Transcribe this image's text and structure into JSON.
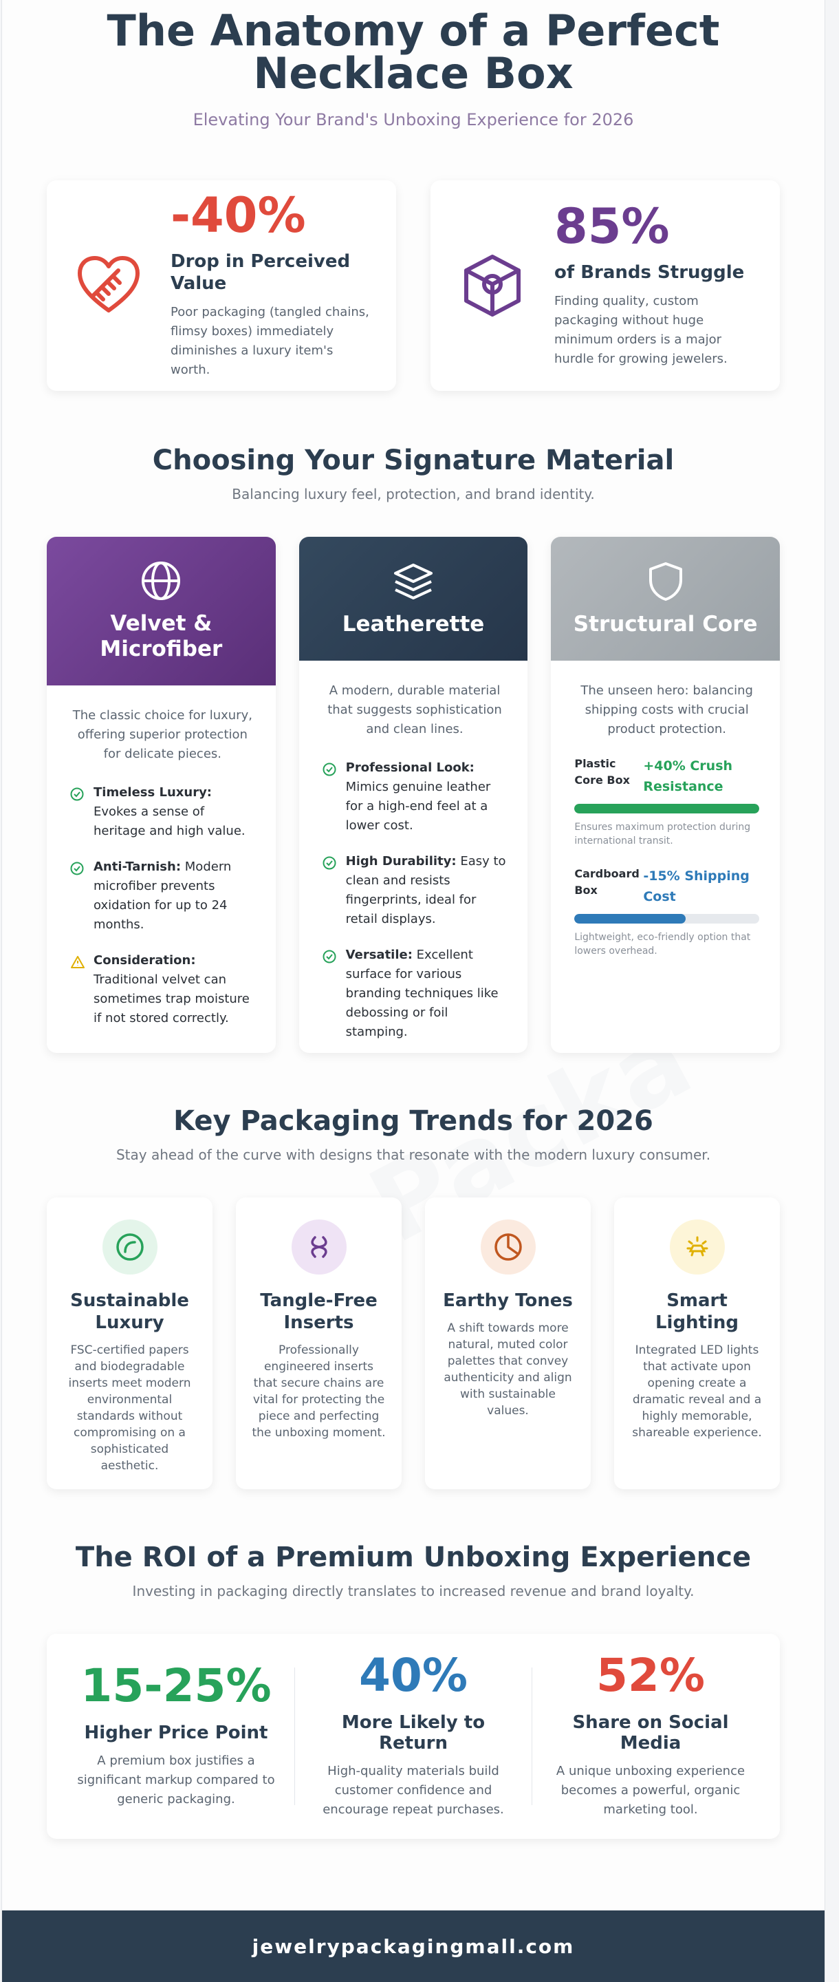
{
  "header": {
    "title_line1": "The Anatomy of a Perfect",
    "title_line2": "Necklace Box",
    "subtitle": "Elevating Your Brand's Unboxing Experience for 2026"
  },
  "colors": {
    "navy": "#2c3e50",
    "red": "#e04a3c",
    "purple": "#6b3d8f",
    "green": "#27a25a",
    "blue": "#2e7ab8",
    "gold": "#e0b000"
  },
  "stats": [
    {
      "icon": "broken-heart-icon",
      "value": "-40%",
      "heading": "Drop in Perceived Value",
      "desc": "Poor packaging (tangled chains, flimsy boxes) immediately diminishes a luxury item's worth."
    },
    {
      "icon": "box-icon",
      "value": "85%",
      "heading": "of Brands Struggle",
      "desc": "Finding quality, custom packaging without huge minimum orders is a major hurdle for growing jewelers."
    }
  ],
  "materials_section": {
    "title": "Choosing Your Signature Material",
    "subtitle": "Balancing luxury feel, protection, and brand identity.",
    "cards": [
      {
        "icon": "globe-icon",
        "title_line1": "Velvet &",
        "title_line2": "Microfiber",
        "intro": "The classic choice for luxury, offering superior protection for delicate pieces.",
        "points": [
          {
            "icon": "check-icon",
            "label": "Timeless Luxury:",
            "text": "Evokes a sense of heritage and high value."
          },
          {
            "icon": "check-icon",
            "label": "Anti-Tarnish:",
            "text": "Modern microfiber prevents oxidation for up to 24 months."
          },
          {
            "icon": "warning-icon",
            "label": "Consideration:",
            "text": "Traditional velvet can sometimes trap moisture if not stored correctly."
          }
        ]
      },
      {
        "icon": "layers-icon",
        "title": "Leatherette",
        "intro": "A modern, durable material that suggests sophistication and clean lines.",
        "points": [
          {
            "icon": "check-icon",
            "label": "Professional Look:",
            "text": "Mimics genuine leather for a high-end feel at a lower cost."
          },
          {
            "icon": "check-icon",
            "label": "High Durability:",
            "text": "Easy to clean and resists fingerprints, ideal for retail displays."
          },
          {
            "icon": "check-icon",
            "label": "Versatile:",
            "text": "Excellent surface for various branding techniques like debossing or foil stamping."
          }
        ]
      },
      {
        "icon": "shield-icon",
        "title": "Structural Core",
        "intro": "The unseen hero: balancing shipping costs with crucial product protection.",
        "bars": [
          {
            "label_line1": "Plastic",
            "label_line2": "Core Box",
            "value_line1": "+40% Crush",
            "value_line2": "Resistance",
            "level": 1.0,
            "color": "#27a25a",
            "note": "Ensures maximum protection during international transit."
          },
          {
            "label_line1": "Cardboard",
            "label_line2": "Box",
            "value_line1": "-15% Shipping",
            "value_line2": "Cost",
            "level": 0.6,
            "color": "#2e7ab8",
            "note": "Lightweight, eco-friendly option that lowers overhead."
          }
        ]
      }
    ]
  },
  "trends_section": {
    "title": "Key Packaging Trends for 2026",
    "subtitle": "Stay ahead of the curve with designs that resonate with the modern luxury consumer.",
    "cards": [
      {
        "icon": "leaf-icon",
        "title_line1": "Sustainable",
        "title_line2": "Luxury",
        "desc": "FSC-certified papers and biodegradable inserts meet modern environmental standards without compromising on a sophisticated aesthetic."
      },
      {
        "icon": "knot-icon",
        "title_line1": "Tangle-Free",
        "title_line2": "Inserts",
        "desc": "Professionally engineered inserts that secure chains are vital for protecting the piece and perfecting the unboxing moment."
      },
      {
        "icon": "palette-icon",
        "title_line1": "Earthy Tones",
        "title_line2": "",
        "desc": "A shift towards more natural, muted color palettes that convey authenticity and align with sustainable values."
      },
      {
        "icon": "light-icon",
        "title_line1": "Smart",
        "title_line2": "Lighting",
        "desc": "Integrated LED lights that activate upon opening create a dramatic reveal and a highly memorable, shareable experience."
      }
    ]
  },
  "roi_section": {
    "title": "The ROI of a Premium Unboxing Experience",
    "subtitle": "Investing in packaging directly translates to increased revenue and brand loyalty.",
    "items": [
      {
        "value": "15-25%",
        "heading": "Higher Price Point",
        "desc": "A premium box justifies a significant markup compared to generic packaging.",
        "color": "#27a25a"
      },
      {
        "value": "40%",
        "heading": "More Likely to Return",
        "desc": "High-quality materials build customer confidence and encourage repeat purchases.",
        "color": "#2e7ab8"
      },
      {
        "value": "52%",
        "heading": "Share on Social Media",
        "desc": "A unique unboxing experience becomes a powerful, organic marketing tool.",
        "color": "#e04a3c"
      }
    ]
  },
  "footer": {
    "text": "jewelrypackagingmall.com"
  }
}
